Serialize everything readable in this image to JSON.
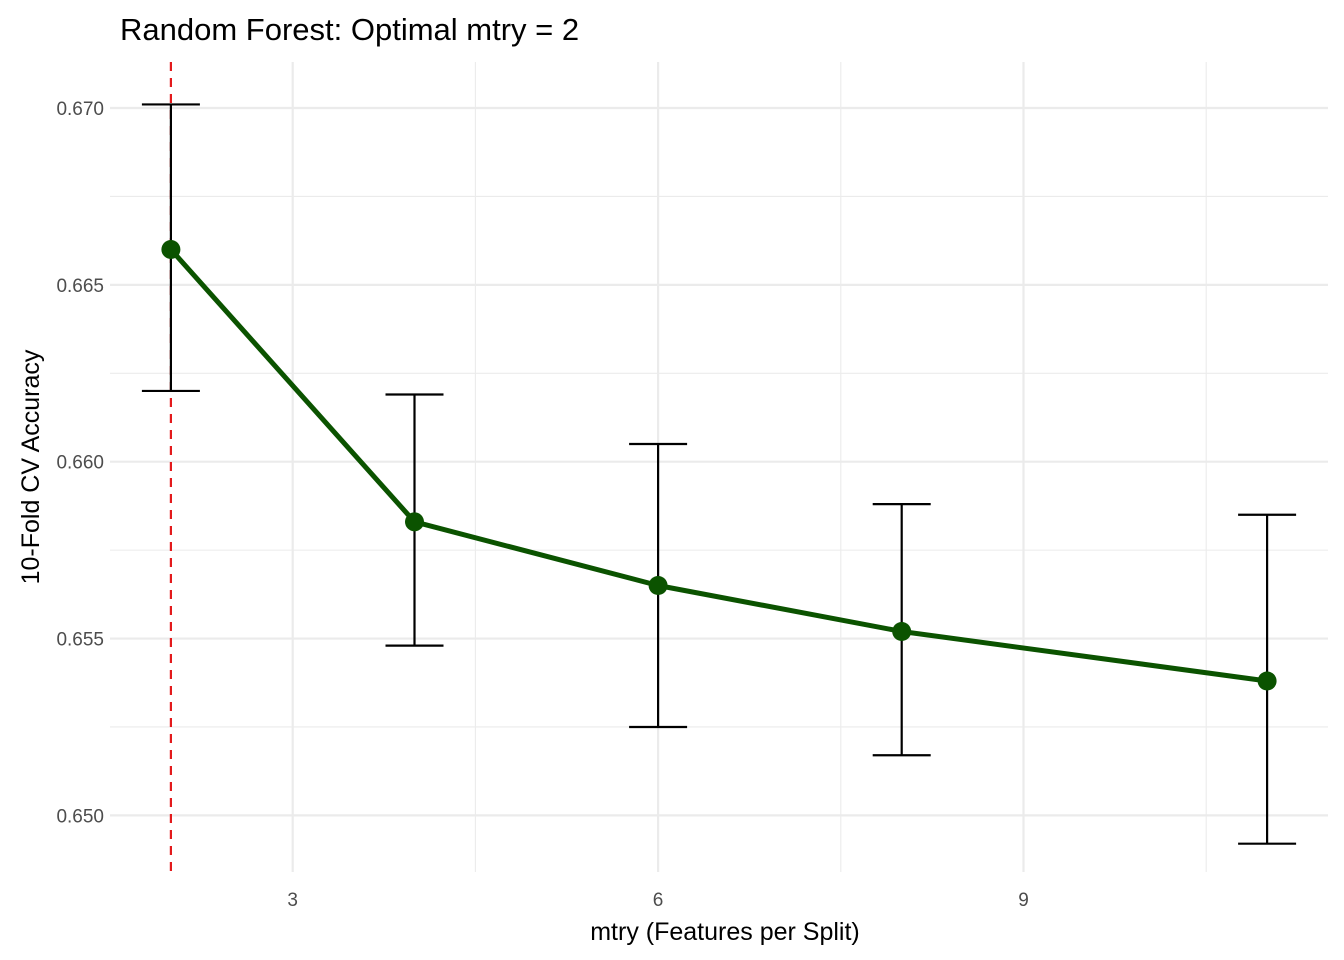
{
  "chart_data": {
    "type": "line",
    "title": "Random Forest: Optimal mtry = 2",
    "xlabel": "mtry (Features per Split)",
    "ylabel": "10-Fold CV Accuracy",
    "xlim": [
      1.5,
      11.5
    ],
    "ylim": [
      0.6484,
      0.6713
    ],
    "x_ticks": [
      3,
      6,
      9
    ],
    "x_tick_labels": [
      "3",
      "6",
      "9"
    ],
    "y_ticks": [
      0.65,
      0.655,
      0.66,
      0.665,
      0.67
    ],
    "y_tick_labels": [
      "0.650",
      "0.655",
      "0.660",
      "0.665",
      "0.670"
    ],
    "grid": true,
    "series": [
      {
        "x": [
          2,
          4,
          6,
          8,
          11
        ],
        "values": [
          0.666,
          0.6583,
          0.6565,
          0.6552,
          0.6538
        ],
        "lower": [
          0.662,
          0.6548,
          0.6525,
          0.6517,
          0.6492
        ],
        "upper": [
          0.6701,
          0.6619,
          0.6605,
          0.6588,
          0.6585
        ]
      }
    ],
    "reference_line": {
      "x": 2,
      "style": "dashed"
    },
    "colors": {
      "line": "#0b5300",
      "point": "#0b5300",
      "errorbar": "#000000",
      "reference": "#e31a1c",
      "grid": "#ebebeb"
    }
  }
}
